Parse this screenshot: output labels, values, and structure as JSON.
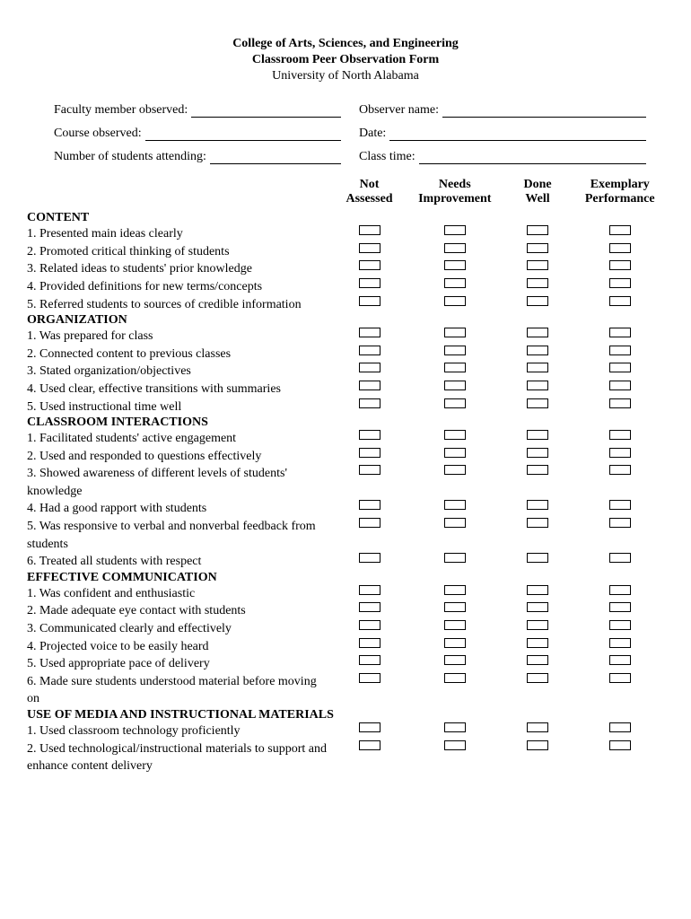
{
  "header": {
    "line1": "College of Arts, Sciences, and Engineering",
    "line2": "Classroom Peer Observation Form",
    "line3": "University of North Alabama"
  },
  "info": {
    "faculty_label": "Faculty member observed:",
    "observer_label": "Observer name:",
    "course_label": "Course observed:",
    "date_label": "Date:",
    "students_label": "Number of students attending:",
    "classtime_label": "Class time:"
  },
  "columns": {
    "c1a": "Not",
    "c1b": "Assessed",
    "c2a": "Needs",
    "c2b": "Improvement",
    "c3a": "Done",
    "c3b": "Well",
    "c4a": "Exemplary",
    "c4b": "Performance"
  },
  "sections": [
    {
      "title": "CONTENT",
      "items": [
        "1. Presented main ideas clearly",
        "2. Promoted critical thinking of students",
        "3. Related ideas to students' prior knowledge",
        "4. Provided definitions for new terms/concepts",
        "5. Referred students to sources of credible information"
      ]
    },
    {
      "title": "ORGANIZATION",
      "items": [
        "1. Was prepared for class",
        "2. Connected content to previous classes",
        "3. Stated organization/objectives",
        "4. Used clear, effective transitions with summaries",
        "5. Used instructional time well"
      ]
    },
    {
      "title": "CLASSROOM INTERACTIONS",
      "items": [
        "1. Facilitated students' active engagement",
        "2. Used and responded to questions effectively",
        "3. Showed awareness of different levels of students' knowledge",
        "4. Had a good rapport with students",
        "5. Was responsive to verbal and nonverbal feedback from students",
        "6. Treated all students with respect"
      ]
    },
    {
      "title": "EFFECTIVE COMMUNICATION",
      "items": [
        "1. Was confident and enthusiastic",
        "2. Made adequate eye contact with students",
        "3. Communicated clearly and effectively",
        "4. Projected voice to be easily heard",
        "5. Used appropriate pace of delivery",
        "6. Made sure students understood material before moving on"
      ]
    },
    {
      "title": "USE OF MEDIA AND INSTRUCTIONAL MATERIALS",
      "items": [
        "1. Used classroom technology proficiently",
        "2. Used technological/instructional materials to support and enhance content delivery"
      ]
    }
  ]
}
